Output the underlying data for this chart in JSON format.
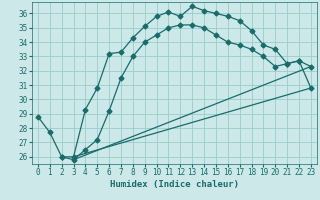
{
  "xlabel": "Humidex (Indice chaleur)",
  "background_color": "#cce8e8",
  "grid_color": "#99cccc",
  "line_color": "#1a6b6b",
  "xlim": [
    -0.5,
    23.5
  ],
  "ylim": [
    25.5,
    36.8
  ],
  "xticks": [
    0,
    1,
    2,
    3,
    4,
    5,
    6,
    7,
    8,
    9,
    10,
    11,
    12,
    13,
    14,
    15,
    16,
    17,
    18,
    19,
    20,
    21,
    22,
    23
  ],
  "yticks": [
    26,
    27,
    28,
    29,
    30,
    31,
    32,
    33,
    34,
    35,
    36
  ],
  "line1_x": [
    0,
    1,
    2,
    3,
    4,
    5,
    6,
    7,
    8,
    9,
    10,
    11,
    12,
    13,
    14,
    15,
    16,
    17,
    18,
    19,
    20,
    21,
    22,
    23
  ],
  "line1_y": [
    28.8,
    27.7,
    26.0,
    26.0,
    29.3,
    30.8,
    33.2,
    33.3,
    34.3,
    35.1,
    35.8,
    36.1,
    35.8,
    36.5,
    36.2,
    36.0,
    35.8,
    35.5,
    34.8,
    33.8,
    33.5,
    32.5,
    32.7,
    30.8
  ],
  "line2_x": [
    2,
    3,
    4,
    5,
    6,
    7,
    8,
    9,
    10,
    11,
    12,
    13,
    14,
    15,
    16,
    17,
    18,
    19,
    20,
    21,
    22,
    23
  ],
  "line2_y": [
    26.0,
    25.8,
    26.5,
    27.2,
    29.2,
    31.5,
    33.0,
    34.0,
    34.5,
    35.0,
    35.2,
    35.2,
    35.0,
    34.5,
    34.0,
    33.8,
    33.5,
    33.0,
    32.3,
    32.5,
    32.7,
    32.3
  ],
  "line3_x": [
    3,
    23
  ],
  "line3_y": [
    26.0,
    30.8
  ],
  "line4_x": [
    3,
    23
  ],
  "line4_y": [
    25.8,
    32.3
  ]
}
